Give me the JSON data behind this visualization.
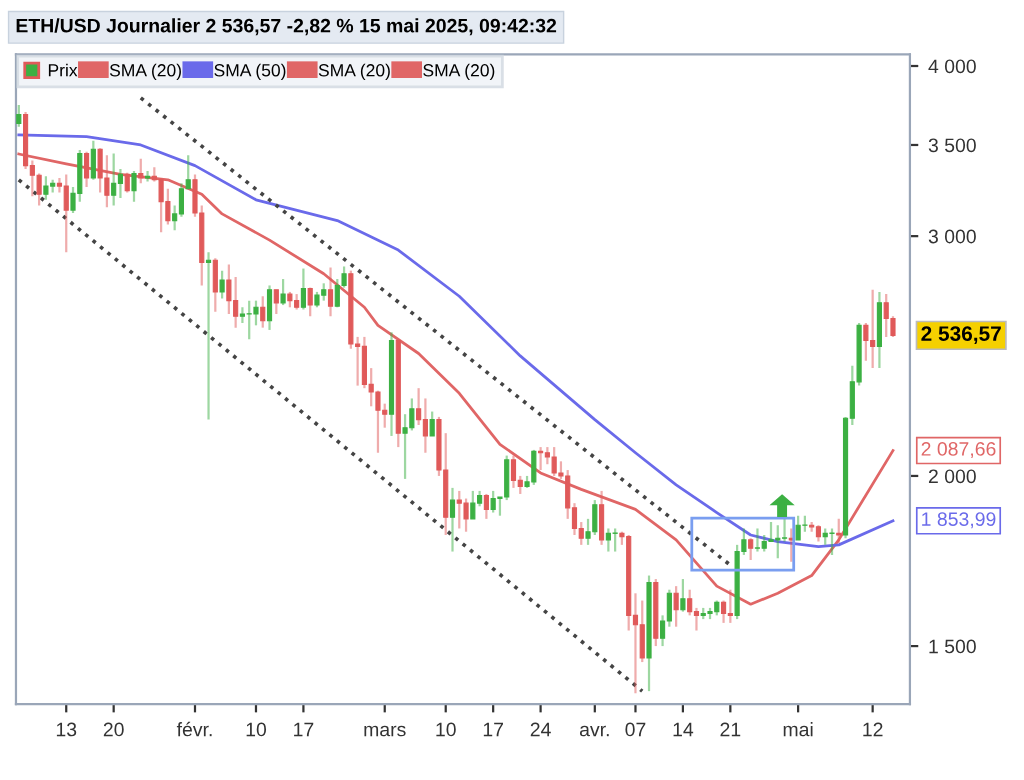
{
  "chart_data": {
    "type": "candlestick",
    "title": "ETH/USD Journalier 2 536,57 -2,82 % 15 mai 2025, 09:42:32",
    "log": "y",
    "ylim": [
      1360,
      4080
    ],
    "yticks": [
      {
        "value": 1500,
        "label": "1 500"
      },
      {
        "value": 2000,
        "label": "2 000"
      },
      {
        "value": 3000,
        "label": "3 000"
      },
      {
        "value": 3500,
        "label": "3 500"
      },
      {
        "value": 4000,
        "label": "4 000"
      }
    ],
    "xlim": [
      "2025-01-05T14:00",
      "2025-05-17T12:00"
    ],
    "xticks": [
      {
        "value": "2025-01-13",
        "label": "13"
      },
      {
        "value": "2025-01-20",
        "label": "20"
      },
      {
        "value": "2025-02-01",
        "label": "févr."
      },
      {
        "value": "2025-02-10",
        "label": "10"
      },
      {
        "value": "2025-02-17",
        "label": "17"
      },
      {
        "value": "2025-03-01",
        "label": "mars"
      },
      {
        "value": "2025-03-10",
        "label": "10"
      },
      {
        "value": "2025-03-17",
        "label": "17"
      },
      {
        "value": "2025-03-24",
        "label": "24"
      },
      {
        "value": "2025-04-01",
        "label": "avr."
      },
      {
        "value": "2025-04-07",
        "label": "07"
      },
      {
        "value": "2025-04-14",
        "label": "14"
      },
      {
        "value": "2025-04-21",
        "label": "21"
      },
      {
        "value": "2025-05-01",
        "label": "mai"
      },
      {
        "value": "2025-05-12",
        "label": "12"
      }
    ],
    "grid": false,
    "legend": "top left",
    "series": [
      {
        "name": "Prix",
        "colors": [
          "#3cb043",
          "#e05a5a",
          "#e05a5a",
          "#e05a5a",
          "#3cb043",
          "#3cb043",
          "#e05a5a",
          "#e05a5a",
          "#3cb043",
          "#3cb043",
          "#e05a5a",
          "#3cb043",
          "#e05a5a",
          "#e05a5a",
          "#3cb043",
          "#3cb043",
          "#e05a5a",
          "#3cb043",
          "#e05a5a",
          "#3cb043",
          "#e05a5a",
          "#e05a5a",
          "#e05a5a",
          "#3cb043",
          "#3cb043",
          "#3cb043",
          "#e05a5a",
          "#e05a5a",
          "#3cb043",
          "#e05a5a",
          "#3cb043",
          "#e05a5a",
          "#e05a5a",
          "#3cb043",
          "#3cb043",
          "#3cb043",
          "#e05a5a",
          "#3cb043",
          "#e05a5a",
          "#3cb043",
          "#e05a5a",
          "#e05a5a",
          "#3cb043",
          "#e05a5a",
          "#3cb043",
          "#3cb043",
          "#e05a5a",
          "#3cb043",
          "#3cb043",
          "#e05a5a",
          "#e05a5a",
          "#e05a5a",
          "#e05a5a",
          "#e05a5a",
          "#e05a5a",
          "#3cb043",
          "#e05a5a",
          "#3cb043",
          "#3cb043",
          "#e05a5a",
          "#e05a5a",
          "#3cb043",
          "#e05a5a",
          "#e05a5a",
          "#3cb043",
          "#e05a5a",
          "#e05a5a",
          "#3cb043",
          "#3cb043",
          "#e05a5a",
          "#3cb043",
          "#3cb043",
          "#3cb043",
          "#e05a5a",
          "#e05a5a",
          "#3cb043",
          "#3cb043",
          "#e05a5a",
          "#e05a5a",
          "#e05a5a",
          "#e05a5a",
          "#e05a5a",
          "#e05a5a",
          "#e05a5a",
          "#3cb043",
          "#3cb043",
          "#e05a5a",
          "#3cb043",
          "#3cb043",
          "#e05a5a",
          "#e05a5a",
          "#e05a5a",
          "#e05a5a",
          "#3cb043",
          "#e05a5a",
          "#3cb043",
          "#3cb043",
          "#e05a5a",
          "#3cb043",
          "#e05a5a",
          "#e05a5a",
          "#3cb043",
          "#3cb043",
          "#3cb043",
          "#e05a5a",
          "#e05a5a",
          "#3cb043",
          "#3cb043",
          "#e05a5a",
          "#3cb043",
          "#3cb043",
          "#3cb043",
          "#3cb043",
          "#3cb043",
          "#e05a5a",
          "#3cb043",
          "#3cb043",
          "#e05a5a",
          "#e05a5a",
          "#3cb043",
          "#3cb043",
          "#e05a5a",
          "#3cb043",
          "#3cb043",
          "#3cb043",
          "#e05a5a",
          "#e05a5a",
          "#3cb043",
          "#e05a5a",
          "#e05a5a"
        ],
        "x": [
          "2025-01-06",
          "2025-01-07",
          "2025-01-08",
          "2025-01-09",
          "2025-01-10",
          "2025-01-11",
          "2025-01-12",
          "2025-01-13",
          "2025-01-14",
          "2025-01-15",
          "2025-01-16",
          "2025-01-17",
          "2025-01-18",
          "2025-01-19",
          "2025-01-20",
          "2025-01-21",
          "2025-01-22",
          "2025-01-23",
          "2025-01-24",
          "2025-01-25",
          "2025-01-26",
          "2025-01-27",
          "2025-01-28",
          "2025-01-29",
          "2025-01-30",
          "2025-01-31",
          "2025-02-01",
          "2025-02-02",
          "2025-02-03",
          "2025-02-04",
          "2025-02-05",
          "2025-02-06",
          "2025-02-07",
          "2025-02-08",
          "2025-02-09",
          "2025-02-10",
          "2025-02-11",
          "2025-02-12",
          "2025-02-13",
          "2025-02-14",
          "2025-02-15",
          "2025-02-16",
          "2025-02-17",
          "2025-02-18",
          "2025-02-19",
          "2025-02-20",
          "2025-02-21",
          "2025-02-22",
          "2025-02-23",
          "2025-02-24",
          "2025-02-25",
          "2025-02-26",
          "2025-02-27",
          "2025-02-28",
          "2025-03-01",
          "2025-03-02",
          "2025-03-03",
          "2025-03-04",
          "2025-03-05",
          "2025-03-06",
          "2025-03-07",
          "2025-03-08",
          "2025-03-09",
          "2025-03-10",
          "2025-03-11",
          "2025-03-12",
          "2025-03-13",
          "2025-03-14",
          "2025-03-15",
          "2025-03-16",
          "2025-03-17",
          "2025-03-18",
          "2025-03-19",
          "2025-03-20",
          "2025-03-21",
          "2025-03-22",
          "2025-03-23",
          "2025-03-24",
          "2025-03-25",
          "2025-03-26",
          "2025-03-27",
          "2025-03-28",
          "2025-03-29",
          "2025-03-30",
          "2025-03-31",
          "2025-04-01",
          "2025-04-02",
          "2025-04-03",
          "2025-04-04",
          "2025-04-05",
          "2025-04-06",
          "2025-04-07",
          "2025-04-08",
          "2025-04-09",
          "2025-04-10",
          "2025-04-11",
          "2025-04-12",
          "2025-04-13",
          "2025-04-14",
          "2025-04-15",
          "2025-04-16",
          "2025-04-17",
          "2025-04-18",
          "2025-04-19",
          "2025-04-20",
          "2025-04-21",
          "2025-04-22",
          "2025-04-23",
          "2025-04-24",
          "2025-04-25",
          "2025-04-26",
          "2025-04-27",
          "2025-04-28",
          "2025-04-29",
          "2025-04-30",
          "2025-05-01",
          "2025-05-02",
          "2025-05-03",
          "2025-05-04",
          "2025-05-05",
          "2025-05-06",
          "2025-05-07",
          "2025-05-08",
          "2025-05-09",
          "2025-05-10",
          "2025-05-11",
          "2025-05-12",
          "2025-05-13",
          "2025-05-14",
          "2025-05-15"
        ],
        "ohlc": [
          [
            3630,
            3745,
            3610,
            3685
          ],
          [
            3685,
            3700,
            3360,
            3380
          ],
          [
            3380,
            3410,
            3210,
            3325
          ],
          [
            3325,
            3335,
            3160,
            3220
          ],
          [
            3220,
            3320,
            3190,
            3265
          ],
          [
            3265,
            3300,
            3230,
            3280
          ],
          [
            3280,
            3310,
            3230,
            3265
          ],
          [
            3265,
            3330,
            2920,
            3135
          ],
          [
            3135,
            3260,
            3120,
            3225
          ],
          [
            3225,
            3470,
            3180,
            3450
          ],
          [
            3450,
            3460,
            3260,
            3310
          ],
          [
            3310,
            3525,
            3300,
            3475
          ],
          [
            3475,
            3480,
            3230,
            3310
          ],
          [
            3310,
            3440,
            3150,
            3215
          ],
          [
            3215,
            3450,
            3160,
            3280
          ],
          [
            3280,
            3360,
            3200,
            3330
          ],
          [
            3330,
            3340,
            3230,
            3240
          ],
          [
            3240,
            3350,
            3180,
            3335
          ],
          [
            3335,
            3420,
            3280,
            3310
          ],
          [
            3310,
            3350,
            3290,
            3320
          ],
          [
            3320,
            3370,
            3290,
            3300
          ],
          [
            3300,
            3310,
            3020,
            3180
          ],
          [
            3180,
            3250,
            3060,
            3080
          ],
          [
            3080,
            3160,
            3030,
            3115
          ],
          [
            3115,
            3280,
            3100,
            3250
          ],
          [
            3250,
            3440,
            3250,
            3300
          ],
          [
            3300,
            3330,
            3100,
            3120
          ],
          [
            3120,
            3160,
            2760,
            2870
          ],
          [
            2870,
            2920,
            2200,
            2880
          ],
          [
            2880,
            2890,
            2640,
            2730
          ],
          [
            2730,
            2830,
            2700,
            2785
          ],
          [
            2785,
            2860,
            2630,
            2690
          ],
          [
            2690,
            2800,
            2570,
            2620
          ],
          [
            2620,
            2660,
            2590,
            2630
          ],
          [
            2630,
            2690,
            2520,
            2630
          ],
          [
            2630,
            2690,
            2580,
            2660
          ],
          [
            2660,
            2710,
            2570,
            2600
          ],
          [
            2600,
            2760,
            2560,
            2740
          ],
          [
            2740,
            2740,
            2630,
            2680
          ],
          [
            2680,
            2790,
            2670,
            2720
          ],
          [
            2720,
            2730,
            2660,
            2690
          ],
          [
            2690,
            2720,
            2650,
            2660
          ],
          [
            2660,
            2840,
            2650,
            2745
          ],
          [
            2745,
            2750,
            2620,
            2670
          ],
          [
            2670,
            2730,
            2660,
            2715
          ],
          [
            2715,
            2770,
            2690,
            2740
          ],
          [
            2740,
            2845,
            2620,
            2665
          ],
          [
            2665,
            2790,
            2660,
            2760
          ],
          [
            2760,
            2850,
            2750,
            2815
          ],
          [
            2815,
            2830,
            2480,
            2500
          ],
          [
            2500,
            2530,
            2330,
            2490
          ],
          [
            2490,
            2530,
            2320,
            2335
          ],
          [
            2335,
            2400,
            2250,
            2305
          ],
          [
            2305,
            2310,
            2080,
            2235
          ],
          [
            2235,
            2260,
            2170,
            2220
          ],
          [
            2220,
            2550,
            2140,
            2515
          ],
          [
            2515,
            2520,
            2100,
            2150
          ],
          [
            2150,
            2220,
            1990,
            2170
          ],
          [
            2170,
            2280,
            2160,
            2240
          ],
          [
            2240,
            2320,
            2180,
            2200
          ],
          [
            2200,
            2280,
            2080,
            2140
          ],
          [
            2140,
            2230,
            2140,
            2200
          ],
          [
            2200,
            2210,
            2000,
            2020
          ],
          [
            2020,
            2150,
            1810,
            1865
          ],
          [
            1865,
            1960,
            1760,
            1920
          ],
          [
            1920,
            1950,
            1830,
            1910
          ],
          [
            1910,
            1925,
            1820,
            1860
          ],
          [
            1860,
            1950,
            1860,
            1910
          ],
          [
            1910,
            1950,
            1900,
            1935
          ],
          [
            1935,
            1940,
            1860,
            1890
          ],
          [
            1890,
            1950,
            1880,
            1925
          ],
          [
            1925,
            1930,
            1870,
            1930
          ],
          [
            1930,
            2070,
            1920,
            2055
          ],
          [
            2055,
            2070,
            1960,
            1985
          ],
          [
            1985,
            2000,
            1940,
            1965
          ],
          [
            1965,
            2000,
            1960,
            1980
          ],
          [
            1980,
            2090,
            1970,
            2085
          ],
          [
            2085,
            2100,
            2020,
            2080
          ],
          [
            2080,
            2100,
            2040,
            2065
          ],
          [
            2065,
            2100,
            2000,
            2010
          ],
          [
            2010,
            2050,
            1990,
            2000
          ],
          [
            2000,
            2020,
            1860,
            1895
          ],
          [
            1895,
            1910,
            1810,
            1830
          ],
          [
            1830,
            1850,
            1780,
            1800
          ],
          [
            1800,
            1860,
            1780,
            1820
          ],
          [
            1820,
            1920,
            1810,
            1905
          ],
          [
            1905,
            1950,
            1780,
            1795
          ],
          [
            1795,
            1830,
            1760,
            1815
          ],
          [
            1815,
            1830,
            1760,
            1815
          ],
          [
            1815,
            1820,
            1780,
            1805
          ],
          [
            1805,
            1810,
            1540,
            1580
          ],
          [
            1580,
            1640,
            1385,
            1555
          ],
          [
            1555,
            1620,
            1460,
            1470
          ],
          [
            1470,
            1690,
            1390,
            1670
          ],
          [
            1670,
            1680,
            1500,
            1520
          ],
          [
            1520,
            1580,
            1500,
            1565
          ],
          [
            1565,
            1650,
            1550,
            1640
          ],
          [
            1640,
            1660,
            1550,
            1595
          ],
          [
            1595,
            1680,
            1590,
            1625
          ],
          [
            1625,
            1650,
            1580,
            1590
          ],
          [
            1590,
            1600,
            1540,
            1580
          ],
          [
            1580,
            1600,
            1570,
            1585
          ],
          [
            1585,
            1600,
            1570,
            1590
          ],
          [
            1590,
            1620,
            1580,
            1615
          ],
          [
            1615,
            1620,
            1560,
            1585
          ],
          [
            1585,
            1650,
            1560,
            1580
          ],
          [
            1580,
            1780,
            1570,
            1760
          ],
          [
            1760,
            1830,
            1750,
            1795
          ],
          [
            1795,
            1800,
            1735,
            1770
          ],
          [
            1770,
            1830,
            1760,
            1770
          ],
          [
            1770,
            1810,
            1760,
            1790
          ],
          [
            1790,
            1850,
            1790,
            1795
          ],
          [
            1795,
            1840,
            1740,
            1800
          ],
          [
            1800,
            1860,
            1790,
            1800
          ],
          [
            1800,
            1830,
            1730,
            1795
          ],
          [
            1795,
            1870,
            1795,
            1840
          ],
          [
            1840,
            1870,
            1820,
            1840
          ],
          [
            1840,
            1850,
            1820,
            1835
          ],
          [
            1835,
            1840,
            1790,
            1805
          ],
          [
            1805,
            1830,
            1780,
            1815
          ],
          [
            1815,
            1830,
            1750,
            1815
          ],
          [
            1815,
            1860,
            1785,
            1810
          ],
          [
            1810,
            2210,
            1800,
            2205
          ],
          [
            2205,
            2410,
            2180,
            2345
          ],
          [
            2345,
            2590,
            2330,
            2580
          ],
          [
            2580,
            2590,
            2430,
            2515
          ],
          [
            2515,
            2740,
            2400,
            2490
          ],
          [
            2490,
            2730,
            2400,
            2680
          ],
          [
            2680,
            2720,
            2530,
            2610
          ],
          [
            2610,
            2620,
            2530,
            2536.57
          ]
        ]
      },
      {
        "name": "SMA (20)",
        "type": "line",
        "color": "#e06666",
        "x": [
          "2025-01-06",
          "2025-01-13",
          "2025-01-21",
          "2025-01-28",
          "2025-02-02",
          "2025-02-05",
          "2025-02-12",
          "2025-02-20",
          "2025-02-26",
          "2025-02-28",
          "2025-03-06",
          "2025-03-12",
          "2025-03-18",
          "2025-03-24",
          "2025-03-30",
          "2025-04-07",
          "2025-04-13",
          "2025-04-19",
          "2025-04-24",
          "2025-04-28",
          "2025-05-03",
          "2025-05-07",
          "2025-05-15"
        ],
        "values": [
          3447,
          3390,
          3330,
          3300,
          3220,
          3115,
          2980,
          2815,
          2660,
          2580,
          2460,
          2300,
          2110,
          2010,
          1955,
          1890,
          1795,
          1660,
          1610,
          1640,
          1690,
          1795,
          2087.66
        ]
      },
      {
        "name": "SMA (50)",
        "type": "line",
        "color": "#6a6aea",
        "x": [
          "2025-01-06",
          "2025-01-16",
          "2025-01-24",
          "2025-02-01",
          "2025-02-10",
          "2025-02-22",
          "2025-03-03",
          "2025-03-12",
          "2025-03-21",
          "2025-04-01",
          "2025-04-07",
          "2025-04-13",
          "2025-04-19",
          "2025-04-24",
          "2025-04-28",
          "2025-05-04",
          "2025-05-07",
          "2025-05-15"
        ],
        "values": [
          3560,
          3550,
          3500,
          3380,
          3190,
          3080,
          2930,
          2710,
          2450,
          2200,
          2080,
          1970,
          1880,
          1810,
          1790,
          1775,
          1780,
          1853.99
        ]
      },
      {
        "name": "SMA (20)",
        "type": "line",
        "color": "#e06666"
      },
      {
        "name": "SMA (20)",
        "type": "line",
        "color": "#e06666"
      },
      {
        "type": "line",
        "color": "#444444",
        "line_style": "dotted",
        "x": [
          "2025-01-24",
          "2025-04-21"
        ],
        "values": [
          3790,
          1720
        ]
      },
      {
        "type": "line",
        "color": "#444444",
        "line_style": "dotted",
        "x": [
          "2025-01-06",
          "2025-04-08"
        ],
        "values": [
          3300,
          1390
        ]
      }
    ],
    "annotations": [
      {
        "text": "2 536,57",
        "x": "2025-05-15",
        "y": 2536.57
      },
      {
        "text": "2 087,66",
        "x": "2025-05-15",
        "y": 2087.66
      },
      {
        "text": "1 853,99",
        "x": "2025-05-15",
        "y": 1853.99
      }
    ]
  }
}
